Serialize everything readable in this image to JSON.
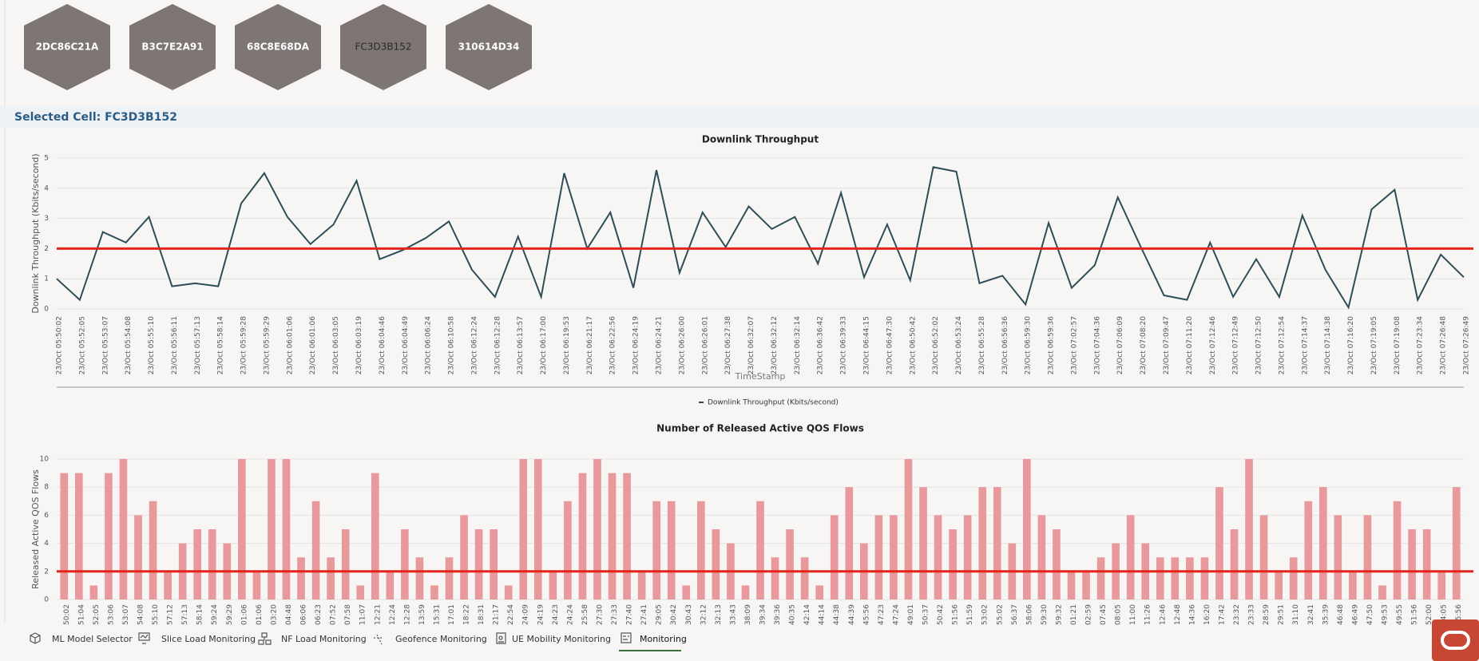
{
  "cells": [
    "2DC86C21A",
    "B3C7E2A91",
    "68C8E68DA",
    "FC3D3B152",
    "310614D34"
  ],
  "selected_cell_label": "Selected Cell: FC3D3B152",
  "chart_data": [
    {
      "type": "line",
      "title": "Downlink Throughput",
      "y_label": "Downlink Throughput (Kbits/second)",
      "x_label": "TimeStamp",
      "categories": [
        "23/Oct 05:50:02",
        "23/Oct 05:52:05",
        "23/Oct 05:53:07",
        "23/Oct 05:54:08",
        "23/Oct 05:55:10",
        "23/Oct 05:56:11",
        "23/Oct 05:57:13",
        "23/Oct 05:58:14",
        "23/Oct 05:59:28",
        "23/Oct 05:59:29",
        "23/Oct 06:01:06",
        "23/Oct 06:01:06",
        "23/Oct 06:03:05",
        "23/Oct 06:03:19",
        "23/Oct 06:04:46",
        "23/Oct 06:04:49",
        "23/Oct 06:06:24",
        "23/Oct 06:10:58",
        "23/Oct 06:12:24",
        "23/Oct 06:12:28",
        "23/Oct 06:13:57",
        "23/Oct 06:17:00",
        "23/Oct 06:19:53",
        "23/Oct 06:21:17",
        "23/Oct 06:22:56",
        "23/Oct 06:24:19",
        "23/Oct 06:24:21",
        "23/Oct 06:26:00",
        "23/Oct 06:26:01",
        "23/Oct 06:27:38",
        "23/Oct 06:32:07",
        "23/Oct 06:32:12",
        "23/Oct 06:32:14",
        "23/Oct 06:36:42",
        "23/Oct 06:39:33",
        "23/Oct 06:44:15",
        "23/Oct 06:47:30",
        "23/Oct 06:50:42",
        "23/Oct 06:52:02",
        "23/Oct 06:53:24",
        "23/Oct 06:55:28",
        "23/Oct 06:56:36",
        "23/Oct 06:59:30",
        "23/Oct 06:59:36",
        "23/Oct 07:02:57",
        "23/Oct 07:04:36",
        "23/Oct 07:06:09",
        "23/Oct 07:08:20",
        "23/Oct 07:09:47",
        "23/Oct 07:11:20",
        "23/Oct 07:12:46",
        "23/Oct 07:12:49",
        "23/Oct 07:12:50",
        "23/Oct 07:12:54",
        "23/Oct 07:14:37",
        "23/Oct 07:14:38",
        "23/Oct 07:16:20",
        "23/Oct 07:19:05",
        "23/Oct 07:19:08",
        "23/Oct 07:23:34",
        "23/Oct 07:26:48",
        "23/Oct 07:26:49"
      ],
      "series": [
        {
          "name": "Downlink Throughput (Kbits/second)",
          "color": "#2e4d57",
          "values": [
            1.0,
            0.3,
            2.55,
            2.2,
            3.05,
            0.75,
            0.85,
            0.75,
            3.5,
            4.5,
            3.05,
            2.15,
            2.8,
            4.25,
            1.65,
            1.95,
            2.35,
            2.9,
            1.3,
            0.4,
            2.4,
            0.4,
            4.5,
            2.0,
            3.2,
            0.7,
            4.6,
            1.2,
            3.2,
            2.05,
            3.4,
            2.65,
            3.05,
            1.5,
            3.85,
            1.05,
            2.8,
            0.95,
            4.7,
            4.55,
            0.85,
            1.1,
            0.15,
            2.85,
            0.7,
            1.45,
            3.7,
            2.05,
            0.45,
            0.3,
            2.2,
            0.4,
            1.65,
            0.4,
            3.1,
            1.3,
            0.05,
            3.3,
            3.95,
            0.3,
            1.8,
            1.05
          ]
        }
      ],
      "ylim": [
        0,
        5
      ],
      "yticks": [
        0,
        1,
        2,
        3,
        4,
        5
      ],
      "grid": true,
      "threshold": 2,
      "threshold_color": "#e3241c",
      "legend": "bottom"
    },
    {
      "type": "bar",
      "title": "Number of Released Active QOS Flows",
      "y_label": "Released Active QOS Flows",
      "categories": [
        "50:02",
        "51:04",
        "52:05",
        "53:06",
        "53:07",
        "54:08",
        "55:10",
        "57:12",
        "57:13",
        "58:14",
        "59:24",
        "59:29",
        "01:06",
        "01:06",
        "03:20",
        "04:48",
        "06:06",
        "06:23",
        "07:52",
        "07:58",
        "11:07",
        "12:21",
        "12:24",
        "12:28",
        "13:59",
        "15:31",
        "17:01",
        "18:22",
        "18:31",
        "21:17",
        "22:54",
        "24:09",
        "24:19",
        "24:23",
        "24:24",
        "25:58",
        "27:30",
        "27:33",
        "27:40",
        "27:41",
        "29:05",
        "30:42",
        "30:43",
        "32:12",
        "32:13",
        "33:43",
        "38:09",
        "39:34",
        "39:36",
        "40:35",
        "42:14",
        "44:14",
        "44:38",
        "44:39",
        "45:56",
        "47:23",
        "47:24",
        "49:01",
        "50:37",
        "50:42",
        "51:56",
        "51:59",
        "53:02",
        "55:02",
        "56:37",
        "58:06",
        "59:30",
        "59:32",
        "01:21",
        "02:59",
        "07:45",
        "08:05",
        "11:00",
        "11:26",
        "12:46",
        "12:48",
        "14:36",
        "16:20",
        "17:42",
        "23:32",
        "23:33",
        "28:59",
        "29:51",
        "31:10",
        "32:41",
        "35:39",
        "46:48",
        "46:49",
        "47:50",
        "49:53",
        "49:55",
        "51:56",
        "52:00",
        "54:05",
        "55:56"
      ],
      "values": [
        9,
        9,
        1,
        9,
        10,
        6,
        7,
        2,
        4,
        5,
        5,
        4,
        10,
        2,
        10,
        10,
        3,
        7,
        3,
        5,
        1,
        9,
        2,
        5,
        3,
        1,
        3,
        6,
        5,
        5,
        1,
        10,
        10,
        2,
        7,
        9,
        10,
        9,
        9,
        2,
        7,
        7,
        1,
        7,
        5,
        4,
        1,
        7,
        3,
        5,
        3,
        1,
        6,
        8,
        4,
        6,
        6,
        10,
        8,
        6,
        5,
        6,
        8,
        8,
        4,
        10,
        6,
        5,
        2,
        2,
        3,
        4,
        6,
        4,
        3,
        3,
        3,
        3,
        8,
        5,
        10,
        6,
        2,
        3,
        7,
        8,
        6,
        2,
        6,
        1,
        7,
        5,
        5,
        2,
        8
      ],
      "color": "#e8999b",
      "ylim": [
        0,
        10
      ],
      "yticks": [
        0,
        2,
        4,
        6,
        8,
        10
      ],
      "grid": true,
      "threshold": 2,
      "threshold_color": "#e3241c"
    }
  ],
  "tabs": [
    "ML Model Selector",
    "Slice Load Monitoring",
    "NF Load Monitoring",
    "Geofence Monitoring",
    "UE Mobility Monitoring",
    "Monitoring"
  ]
}
